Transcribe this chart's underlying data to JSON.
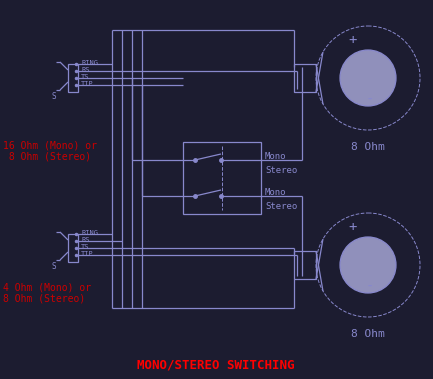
{
  "bg_color": "#1c1c30",
  "line_color": "#8888cc",
  "text_color": "#8888cc",
  "red_color": "#cc0000",
  "title": "MONO/STEREO SWITCHING",
  "title_color": "#ff0000",
  "speaker1_label": "8 Ohm",
  "speaker2_label": "8 Ohm",
  "ohm_label1": "16 Ohm (Mono) or\n 8 Ohm (Stereo)",
  "ohm_label2": "4 Ohm (Mono) or\n8 Ohm (Stereo)",
  "fig_width": 4.33,
  "fig_height": 3.79,
  "dpi": 100
}
